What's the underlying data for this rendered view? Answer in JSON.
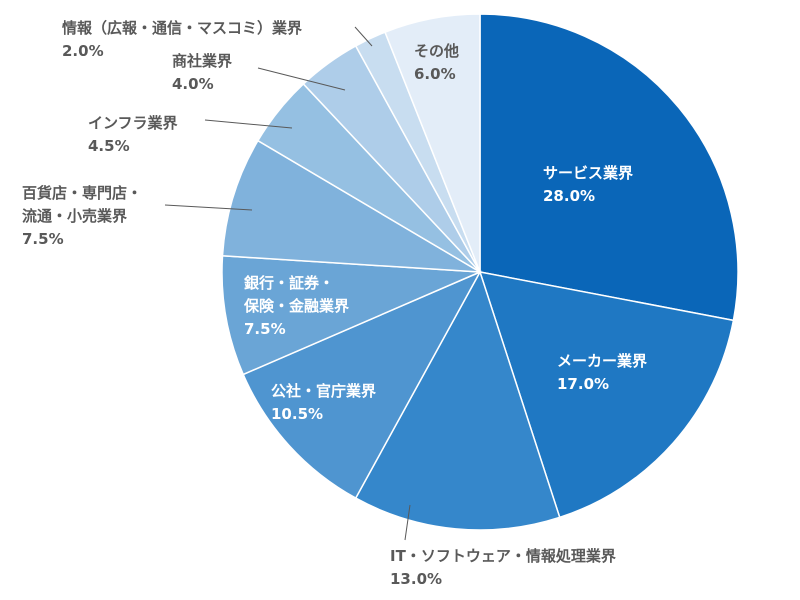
{
  "chart_data": {
    "type": "pie",
    "categories": [
      "サービス業界",
      "メーカー業界",
      "IT・ソフトウェア・情報処理業界",
      "公社・官庁業界",
      "銀行・証券・\n保険・金融業界",
      "百貨店・専門店・\n流通・小売業界",
      "インフラ業界",
      "商社業界",
      "情報（広報・通信・マスコミ）業界",
      "その他"
    ],
    "values": [
      28.0,
      17.0,
      13.0,
      10.5,
      7.5,
      7.5,
      4.5,
      4.0,
      2.0,
      6.0
    ],
    "value_labels": [
      "28.0%",
      "17.0%",
      "13.0%",
      "10.5%",
      "7.5%",
      "7.5%",
      "4.5%",
      "4.0%",
      "2.0%",
      "6.0%"
    ],
    "colors": [
      "#0a66b8",
      "#1f78c3",
      "#3587cb",
      "#4f95d0",
      "#6aa5d6",
      "#80b2dc",
      "#95c0e2",
      "#aecde9",
      "#c8ddf0",
      "#e3edf8"
    ]
  }
}
